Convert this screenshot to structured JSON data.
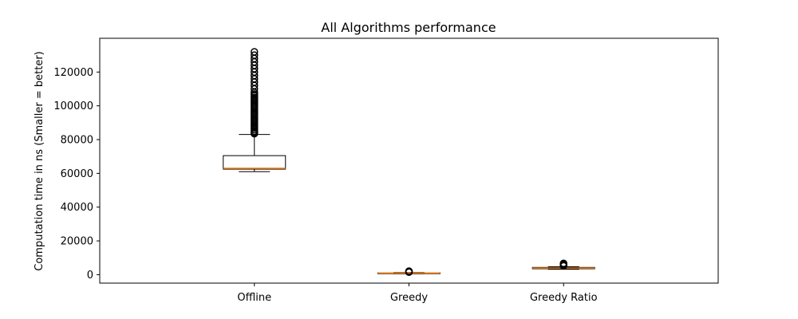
{
  "chart_data": {
    "type": "box",
    "title": "All Algorithms performance",
    "xlabel": "",
    "ylabel": "Computation time in ns (Smaller = better)",
    "ylim": [
      -5000,
      140000
    ],
    "yticks": [
      0,
      20000,
      40000,
      60000,
      80000,
      100000,
      120000
    ],
    "ytick_labels": [
      "0",
      "20000",
      "40000",
      "60000",
      "80000",
      "100000",
      "120000"
    ],
    "grid": false,
    "legend": "none",
    "categories": [
      "Offline",
      "Greedy",
      "Greedy Ratio"
    ],
    "boxes": [
      {
        "category": "Offline",
        "whisker_low": 61000,
        "q1": 62500,
        "median": 63000,
        "q3": 70500,
        "whisker_high": 83000,
        "outliers": [
          83500,
          84000,
          84500,
          85000,
          86000,
          87000,
          88000,
          89000,
          90000,
          91000,
          92000,
          93000,
          94000,
          95000,
          96000,
          97000,
          98000,
          99000,
          100000,
          101000,
          102000,
          103000,
          104000,
          105000,
          106000,
          107000,
          108000,
          110000,
          112000,
          114000,
          116000,
          118000,
          120000,
          122000,
          124000,
          126000,
          128000,
          130000,
          132000
        ]
      },
      {
        "category": "Greedy",
        "whisker_low": 600,
        "q1": 900,
        "median": 1000,
        "q3": 1100,
        "whisker_high": 1300,
        "outliers": [
          1500,
          1700,
          1900,
          2100
        ]
      },
      {
        "category": "Greedy Ratio",
        "whisker_low": 3200,
        "q1": 3500,
        "median": 3900,
        "q3": 4300,
        "whisker_high": 4700,
        "outliers": [
          5200,
          5700,
          6200,
          6700
        ]
      }
    ],
    "colors": {
      "box": "#000000",
      "median": "#ff7f0e",
      "outlier": "#000000",
      "background": "#ffffff"
    }
  }
}
